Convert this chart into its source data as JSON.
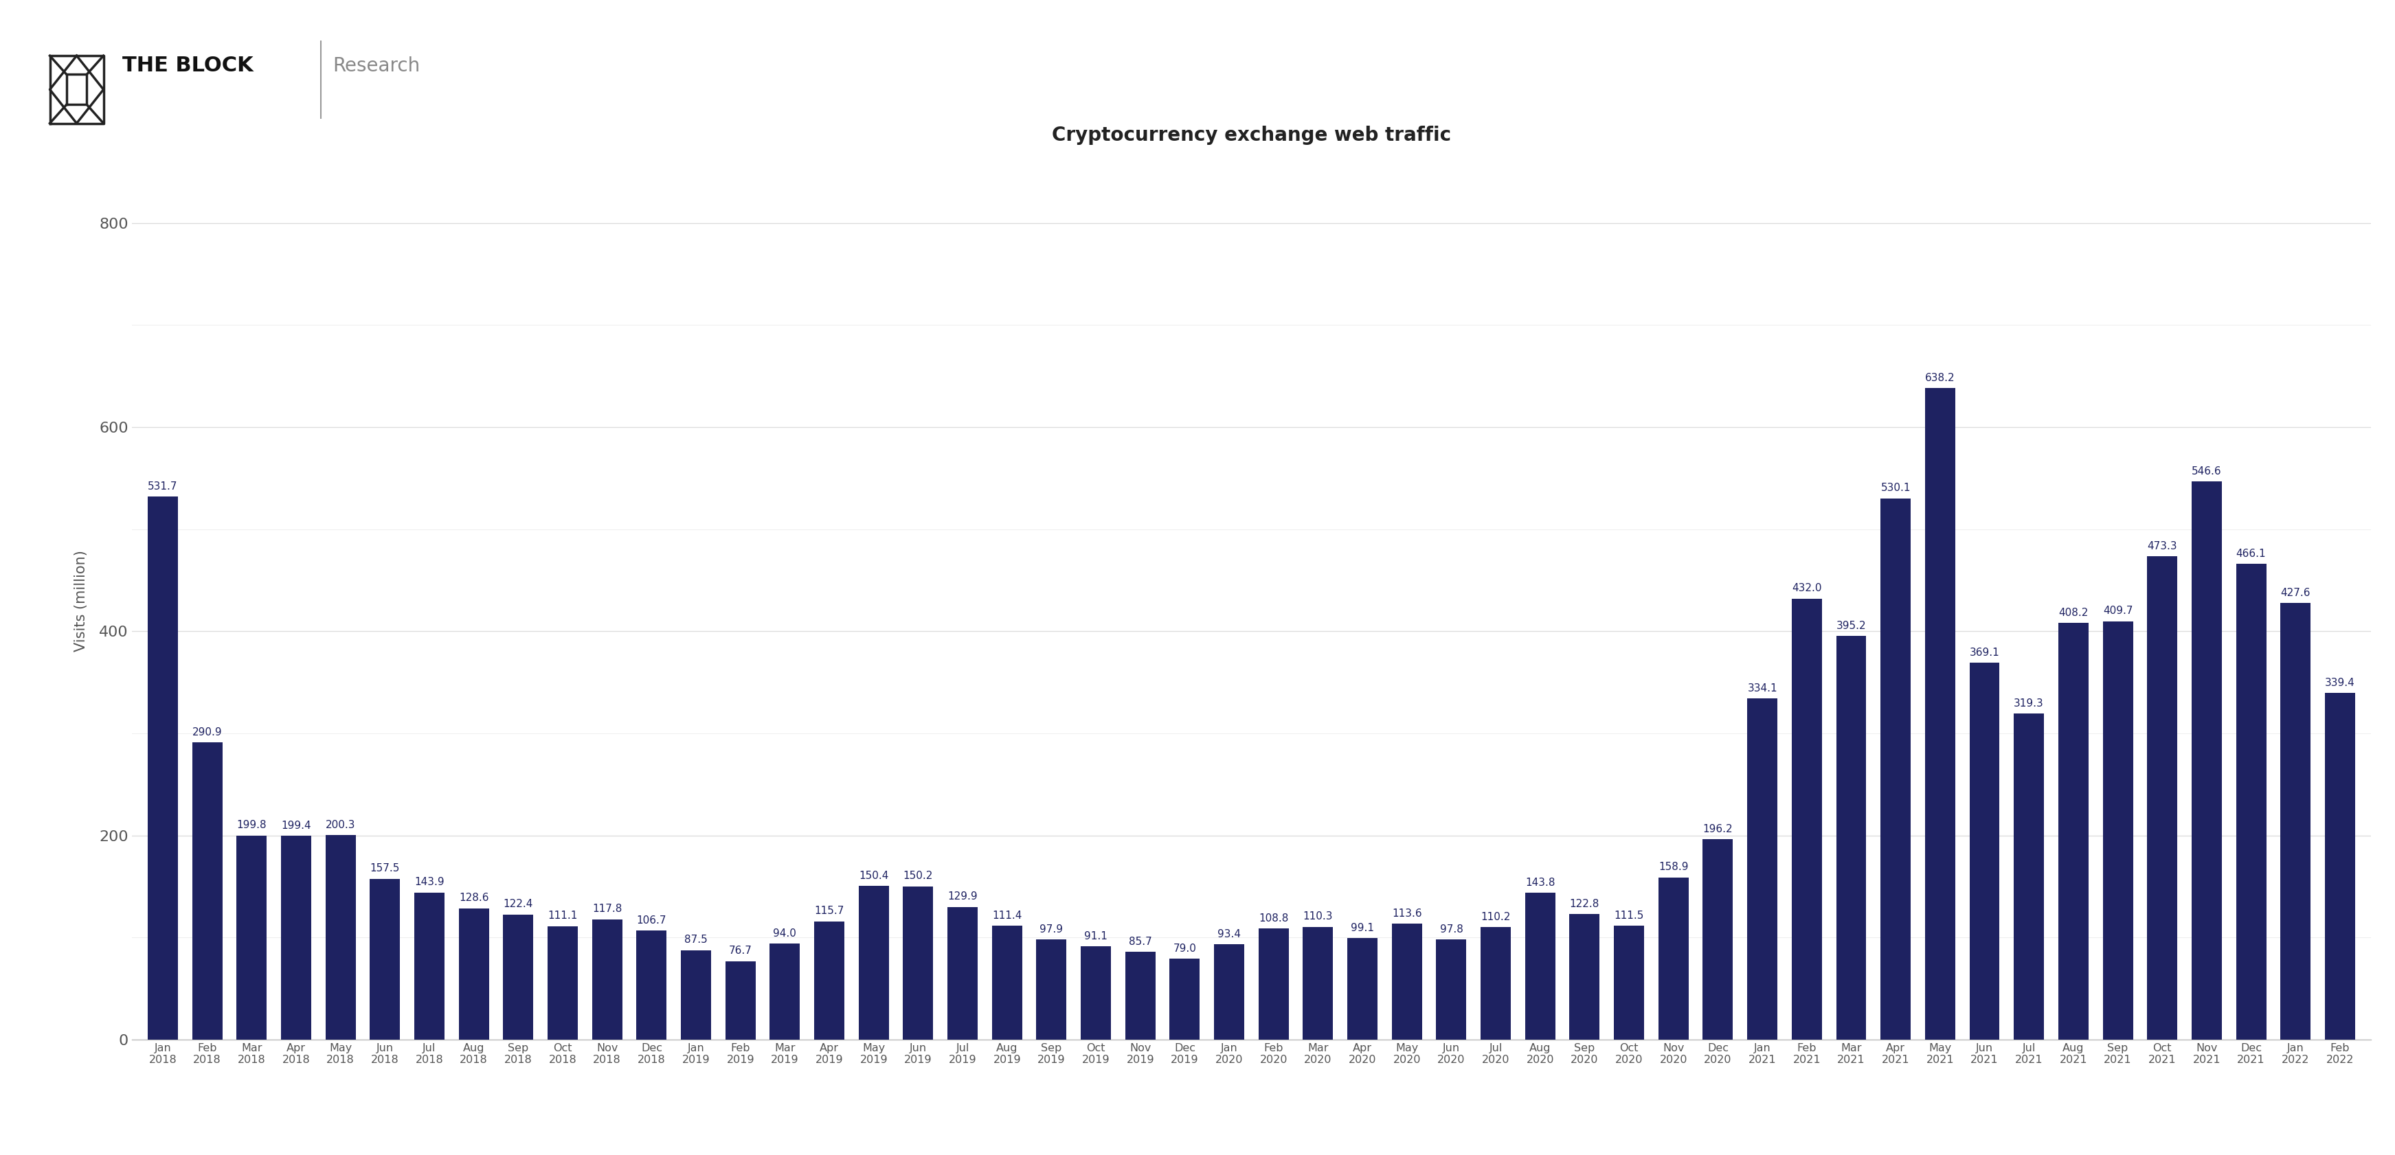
{
  "title": "Cryptocurrency exchange web traffic",
  "ylabel": "Visits (million)",
  "bar_color": "#1e2261",
  "background_color": "#ffffff",
  "grid_color": "#dddddd",
  "minor_grid_color": "#eeeeee",
  "label_color": "#1e2261",
  "tick_color": "#555555",
  "categories": [
    "Jan\n2018",
    "Feb\n2018",
    "Mar\n2018",
    "Apr\n2018",
    "May\n2018",
    "Jun\n2018",
    "Jul\n2018",
    "Aug\n2018",
    "Sep\n2018",
    "Oct\n2018",
    "Nov\n2018",
    "Dec\n2018",
    "Jan\n2019",
    "Feb\n2019",
    "Mar\n2019",
    "Apr\n2019",
    "May\n2019",
    "Jun\n2019",
    "Jul\n2019",
    "Aug\n2019",
    "Sep\n2019",
    "Oct\n2019",
    "Nov\n2019",
    "Dec\n2019",
    "Jan\n2020",
    "Feb\n2020",
    "Mar\n2020",
    "Apr\n2020",
    "May\n2020",
    "Jun\n2020",
    "Jul\n2020",
    "Aug\n2020",
    "Sep\n2020",
    "Oct\n2020",
    "Nov\n2020",
    "Dec\n2020",
    "Jan\n2021",
    "Feb\n2021",
    "Mar\n2021",
    "Apr\n2021",
    "May\n2021",
    "Jun\n2021",
    "Jul\n2021",
    "Aug\n2021",
    "Sep\n2021",
    "Oct\n2021",
    "Nov\n2021",
    "Dec\n2021",
    "Jan\n2022",
    "Feb\n2022"
  ],
  "values": [
    531.7,
    290.9,
    199.8,
    199.4,
    200.3,
    157.5,
    143.9,
    128.6,
    122.4,
    111.1,
    117.8,
    106.7,
    87.5,
    76.7,
    94.0,
    115.7,
    150.4,
    150.2,
    129.9,
    111.4,
    97.9,
    91.1,
    85.7,
    79.0,
    93.4,
    108.8,
    110.3,
    99.1,
    113.6,
    97.8,
    110.2,
    143.8,
    122.8,
    111.5,
    158.9,
    196.2,
    334.1,
    432.0,
    395.2,
    530.1,
    638.2,
    369.1,
    319.3,
    408.2,
    409.7,
    473.3,
    546.6,
    466.1,
    427.6,
    339.4
  ],
  "yticks_major": [
    0,
    200,
    400,
    600,
    800
  ],
  "yticks_minor": [
    100,
    300,
    500,
    700
  ],
  "ylim": [
    0,
    860
  ]
}
